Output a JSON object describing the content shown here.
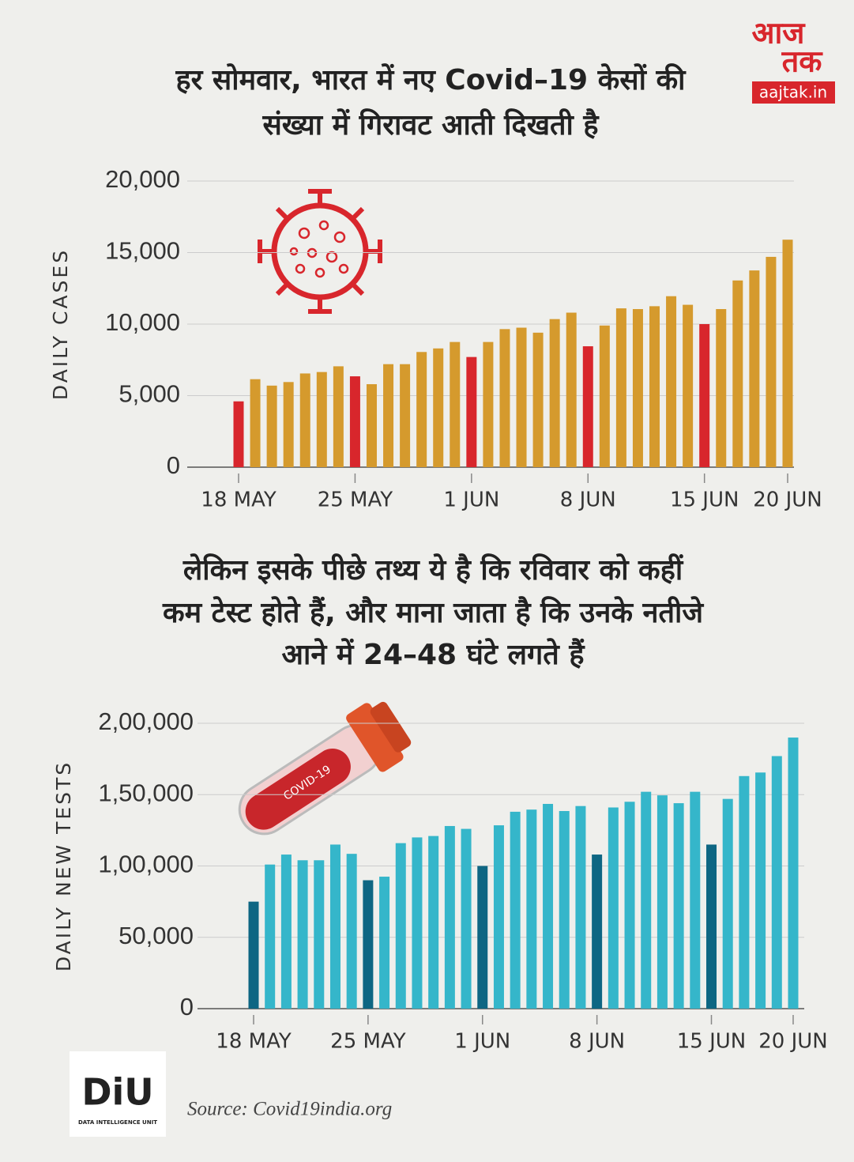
{
  "header": {
    "logo_top": "आज",
    "logo_bottom": "तक",
    "logo_site": "aajtak.in"
  },
  "chart_data": [
    {
      "type": "bar",
      "title": [
        "हर सोमवार, भारत में नए Covid–19 केसों की",
        "संख्या में गिरावट आती दिखती है"
      ],
      "y_label": "DAILY CASES",
      "categories": [
        "18 MAY",
        null,
        null,
        null,
        null,
        null,
        null,
        "25 MAY",
        null,
        null,
        null,
        null,
        null,
        null,
        "1 JUN",
        null,
        null,
        null,
        null,
        null,
        null,
        "8 JUN",
        null,
        null,
        null,
        null,
        null,
        null,
        "15 JUN",
        null,
        null,
        null,
        null,
        "20 JUN"
      ],
      "values": [
        4600,
        6150,
        5700,
        5950,
        6550,
        6650,
        7050,
        6350,
        5800,
        7200,
        7200,
        8050,
        8300,
        8750,
        7700,
        8750,
        9650,
        9750,
        9400,
        10350,
        10800,
        8450,
        9900,
        11100,
        11050,
        11250,
        11950,
        11350,
        10000,
        11050,
        13050,
        13750,
        14700,
        15900
      ],
      "colors": [
        "#d8262c",
        "#d59a2d",
        "#d59a2d",
        "#d59a2d",
        "#d59a2d",
        "#d59a2d",
        "#d59a2d",
        "#d8262c",
        "#d59a2d",
        "#d59a2d",
        "#d59a2d",
        "#d59a2d",
        "#d59a2d",
        "#d59a2d",
        "#d8262c",
        "#d59a2d",
        "#d59a2d",
        "#d59a2d",
        "#d59a2d",
        "#d59a2d",
        "#d59a2d",
        "#d8262c",
        "#d59a2d",
        "#d59a2d",
        "#d59a2d",
        "#d59a2d",
        "#d59a2d",
        "#d59a2d",
        "#d8262c",
        "#d59a2d",
        "#d59a2d",
        "#d59a2d",
        "#d59a2d",
        "#d59a2d"
      ],
      "ylim": [
        0,
        20000
      ],
      "yticks": [
        0,
        {
          "value": 5000,
          "label": "5,000"
        },
        {
          "value": 10000,
          "label": "10,000"
        },
        {
          "value": 15000,
          "label": "15,000"
        },
        {
          "value": 20000,
          "label": "20,000"
        }
      ],
      "grid": true
    },
    {
      "type": "bar",
      "title": [
        "लेकिन इसके पीछे तथ्य ये है कि रविवार को कहीं",
        "कम टेस्ट होते हैं, और माना जाता है कि उनके नतीजे",
        "आने में 24–48 घंटे लगते हैं"
      ],
      "y_label": "DAILY NEW TESTS",
      "label_on_tube": "COVID-19",
      "categories": [
        "18 MAY",
        null,
        null,
        null,
        null,
        null,
        null,
        "25 MAY",
        null,
        null,
        null,
        null,
        null,
        null,
        "1 JUN",
        null,
        null,
        null,
        null,
        null,
        null,
        "8 JUN",
        null,
        null,
        null,
        null,
        null,
        null,
        "15 JUN",
        null,
        null,
        null,
        null,
        "20 JUN"
      ],
      "values": [
        75000,
        101000,
        108000,
        104000,
        104000,
        115000,
        108500,
        90000,
        92500,
        116000,
        120000,
        121000,
        128000,
        126000,
        100000,
        128500,
        138000,
        139500,
        143500,
        138500,
        142000,
        108000,
        141000,
        145000,
        152000,
        149500,
        144000,
        152000,
        115000,
        147000,
        163000,
        165500,
        177000,
        190000
      ],
      "colors": [
        "#0e6683",
        "#35b6ca",
        "#35b6ca",
        "#35b6ca",
        "#35b6ca",
        "#35b6ca",
        "#35b6ca",
        "#0e6683",
        "#35b6ca",
        "#35b6ca",
        "#35b6ca",
        "#35b6ca",
        "#35b6ca",
        "#35b6ca",
        "#0e6683",
        "#35b6ca",
        "#35b6ca",
        "#35b6ca",
        "#35b6ca",
        "#35b6ca",
        "#35b6ca",
        "#0e6683",
        "#35b6ca",
        "#35b6ca",
        "#35b6ca",
        "#35b6ca",
        "#35b6ca",
        "#35b6ca",
        "#0e6683",
        "#35b6ca",
        "#35b6ca",
        "#35b6ca",
        "#35b6ca",
        "#35b6ca"
      ],
      "ylim": [
        0,
        200000
      ],
      "yticks": [
        0,
        {
          "value": 50000,
          "label": "50,000"
        },
        {
          "value": 100000,
          "label": "1,00,000"
        },
        {
          "value": 150000,
          "label": "1,50,000"
        },
        {
          "value": 200000,
          "label": "2,00,000"
        }
      ],
      "grid": true
    }
  ],
  "footer": {
    "logo": "DiU",
    "logo_sub": "DATA INTELLIGENCE UNIT",
    "source": "Source: Covid19india.org"
  }
}
